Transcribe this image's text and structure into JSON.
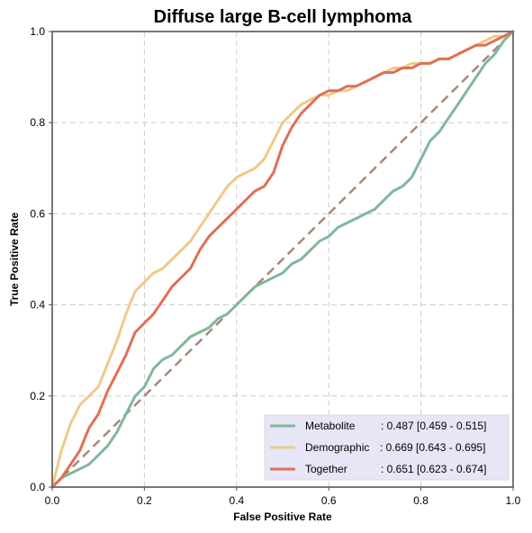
{
  "chart_data": {
    "type": "line",
    "title": "Diffuse large B-cell lymphoma",
    "xlabel": "False Positive Rate",
    "ylabel": "True Positive Rate",
    "xlim": [
      0,
      1
    ],
    "ylim": [
      0,
      1
    ],
    "xticks": [
      "0.0",
      "0.2",
      "0.4",
      "0.6",
      "0.8",
      "1.0"
    ],
    "yticks": [
      "0.0",
      "0.2",
      "0.4",
      "0.6",
      "0.8",
      "1.0"
    ],
    "grid": true,
    "legend_position": "lower-right",
    "diagonal": {
      "x": [
        0,
        1
      ],
      "y": [
        0,
        1
      ],
      "color": "#a8877a",
      "style": "dashed"
    },
    "series": [
      {
        "name": "Metabolite",
        "auc_text": ": 0.487 [0.459 - 0.515]",
        "color": "#7fb89a",
        "x": [
          0,
          0.02,
          0.04,
          0.06,
          0.08,
          0.1,
          0.12,
          0.14,
          0.16,
          0.18,
          0.2,
          0.22,
          0.24,
          0.26,
          0.28,
          0.3,
          0.32,
          0.34,
          0.36,
          0.38,
          0.4,
          0.42,
          0.44,
          0.46,
          0.48,
          0.5,
          0.52,
          0.54,
          0.56,
          0.58,
          0.6,
          0.62,
          0.64,
          0.66,
          0.68,
          0.7,
          0.72,
          0.74,
          0.76,
          0.78,
          0.8,
          0.82,
          0.84,
          0.86,
          0.88,
          0.9,
          0.92,
          0.94,
          0.96,
          0.98,
          1.0
        ],
        "y": [
          0,
          0.02,
          0.03,
          0.04,
          0.05,
          0.07,
          0.09,
          0.12,
          0.16,
          0.2,
          0.22,
          0.26,
          0.28,
          0.29,
          0.31,
          0.33,
          0.34,
          0.35,
          0.37,
          0.38,
          0.4,
          0.42,
          0.44,
          0.45,
          0.46,
          0.47,
          0.49,
          0.5,
          0.52,
          0.54,
          0.55,
          0.57,
          0.58,
          0.59,
          0.6,
          0.61,
          0.63,
          0.65,
          0.66,
          0.68,
          0.72,
          0.76,
          0.78,
          0.81,
          0.84,
          0.87,
          0.9,
          0.93,
          0.95,
          0.98,
          1.0
        ]
      },
      {
        "name": "Demographic",
        "auc_text": ": 0.669 [0.643 - 0.695]",
        "color": "#f0c98a",
        "x": [
          0,
          0.01,
          0.02,
          0.03,
          0.04,
          0.06,
          0.08,
          0.1,
          0.12,
          0.14,
          0.16,
          0.18,
          0.2,
          0.22,
          0.24,
          0.26,
          0.28,
          0.3,
          0.32,
          0.34,
          0.36,
          0.38,
          0.4,
          0.42,
          0.44,
          0.46,
          0.48,
          0.5,
          0.52,
          0.54,
          0.56,
          0.58,
          0.6,
          0.62,
          0.64,
          0.66,
          0.68,
          0.7,
          0.72,
          0.74,
          0.76,
          0.78,
          0.8,
          0.82,
          0.84,
          0.86,
          0.88,
          0.9,
          0.92,
          0.94,
          0.96,
          0.98,
          1.0
        ],
        "y": [
          0,
          0.04,
          0.08,
          0.11,
          0.14,
          0.18,
          0.2,
          0.22,
          0.27,
          0.32,
          0.38,
          0.43,
          0.45,
          0.47,
          0.48,
          0.5,
          0.52,
          0.54,
          0.57,
          0.6,
          0.63,
          0.66,
          0.68,
          0.69,
          0.7,
          0.72,
          0.76,
          0.8,
          0.82,
          0.84,
          0.85,
          0.86,
          0.86,
          0.87,
          0.87,
          0.88,
          0.89,
          0.9,
          0.91,
          0.92,
          0.92,
          0.93,
          0.93,
          0.93,
          0.94,
          0.94,
          0.95,
          0.96,
          0.97,
          0.98,
          0.99,
          0.99,
          1.0
        ]
      },
      {
        "name": "Together",
        "auc_text": ": 0.651 [0.623 - 0.674]",
        "color": "#e07055",
        "x": [
          0,
          0.02,
          0.04,
          0.06,
          0.08,
          0.1,
          0.12,
          0.14,
          0.16,
          0.18,
          0.2,
          0.22,
          0.24,
          0.26,
          0.28,
          0.3,
          0.32,
          0.34,
          0.36,
          0.38,
          0.4,
          0.42,
          0.44,
          0.46,
          0.48,
          0.5,
          0.52,
          0.54,
          0.56,
          0.58,
          0.6,
          0.62,
          0.64,
          0.66,
          0.68,
          0.7,
          0.72,
          0.74,
          0.76,
          0.78,
          0.8,
          0.82,
          0.84,
          0.86,
          0.88,
          0.9,
          0.92,
          0.94,
          0.96,
          0.98,
          1.0
        ],
        "y": [
          0,
          0.02,
          0.05,
          0.08,
          0.13,
          0.16,
          0.21,
          0.25,
          0.29,
          0.34,
          0.36,
          0.38,
          0.41,
          0.44,
          0.46,
          0.48,
          0.52,
          0.55,
          0.57,
          0.59,
          0.61,
          0.63,
          0.65,
          0.66,
          0.69,
          0.75,
          0.79,
          0.82,
          0.84,
          0.86,
          0.87,
          0.87,
          0.88,
          0.88,
          0.89,
          0.9,
          0.91,
          0.91,
          0.92,
          0.92,
          0.93,
          0.93,
          0.94,
          0.94,
          0.95,
          0.96,
          0.97,
          0.97,
          0.98,
          0.99,
          1.0
        ]
      }
    ]
  }
}
